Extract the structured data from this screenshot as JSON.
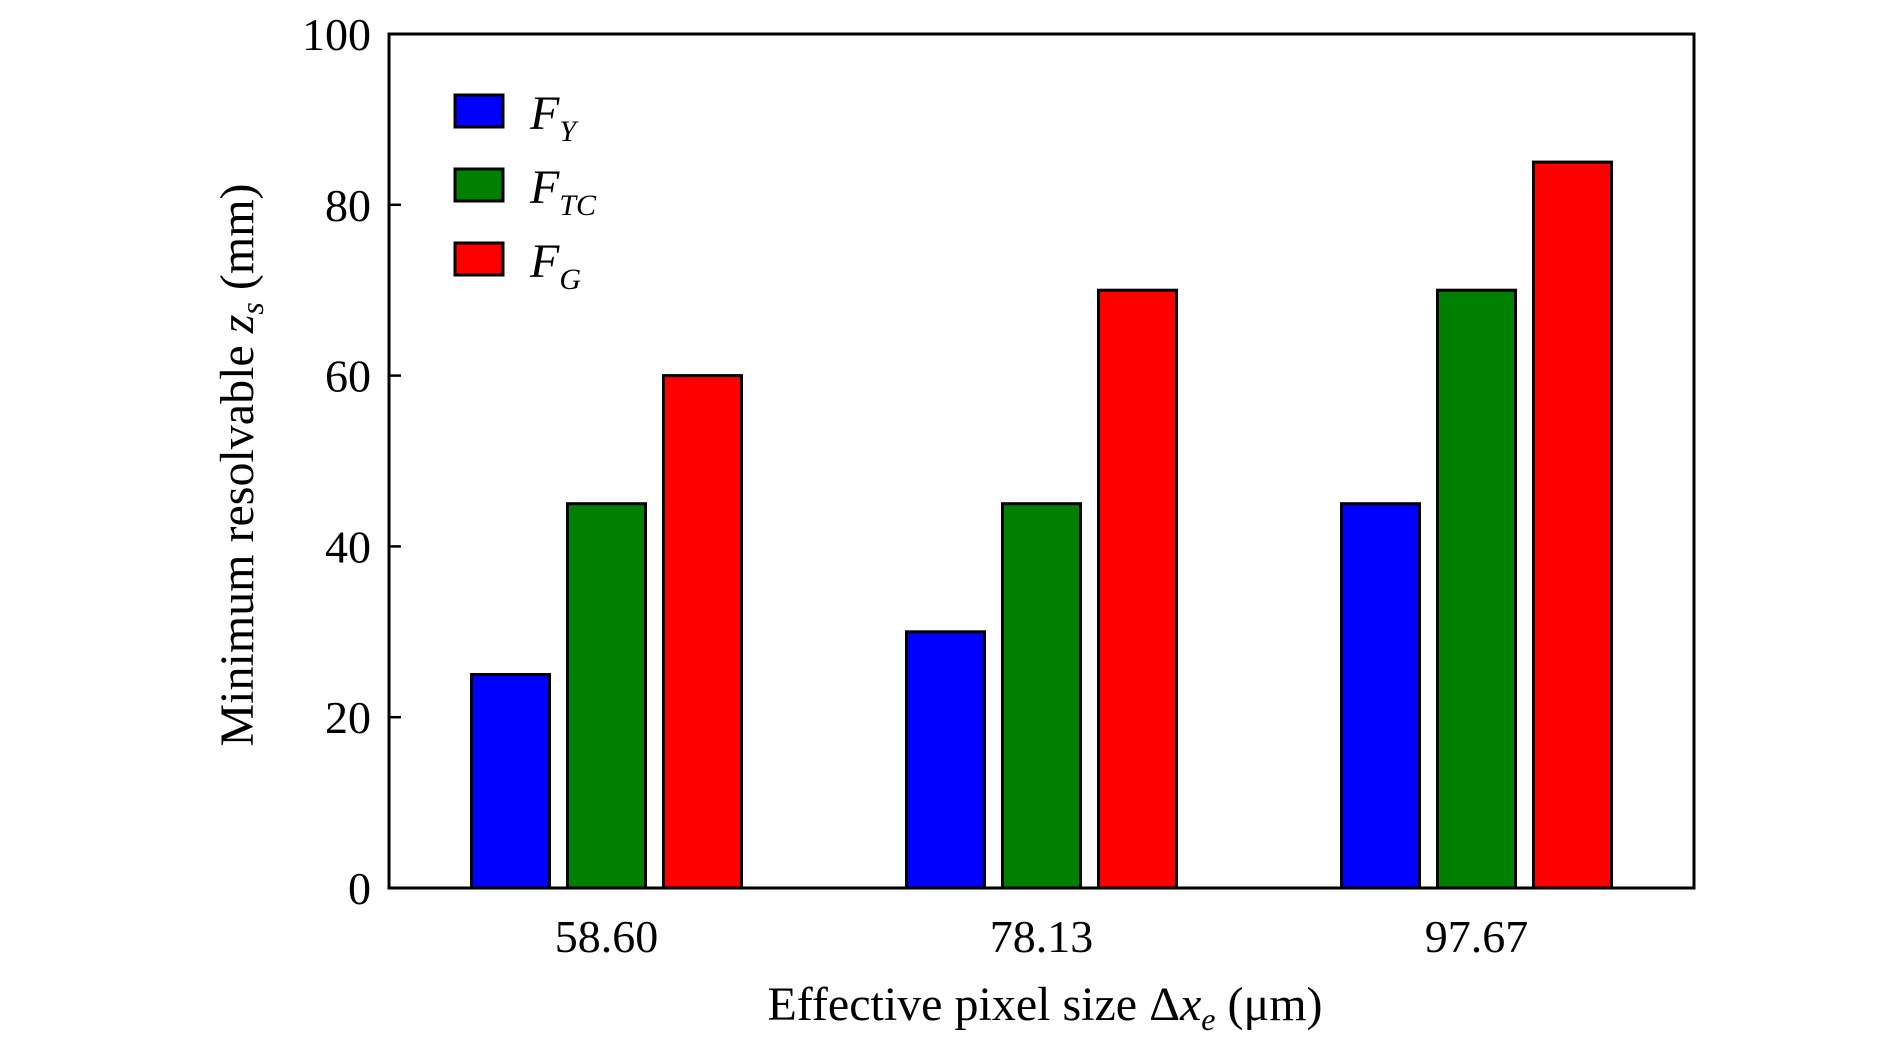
{
  "chart_data": {
    "type": "bar",
    "categories": [
      "58.60",
      "78.13",
      "97.67"
    ],
    "series": [
      {
        "name": "F_Y",
        "label_main": "F",
        "label_sub": "Y",
        "color": "#0000ff",
        "values": [
          25,
          30,
          45
        ]
      },
      {
        "name": "F_TC",
        "label_main": "F",
        "label_sub": "TC",
        "color": "#008000",
        "values": [
          45,
          45,
          70
        ]
      },
      {
        "name": "F_G",
        "label_main": "F",
        "label_sub": "G",
        "color": "#ff0000",
        "values": [
          60,
          70,
          85
        ]
      }
    ],
    "ylim": [
      0,
      100
    ],
    "yticks": [
      0,
      20,
      40,
      60,
      80,
      100
    ],
    "ytick_labels": [
      "0",
      "20",
      "40",
      "60",
      "80",
      "100"
    ],
    "xlabel": {
      "prefix": "Effective pixel size Δ",
      "var": "x",
      "sub": "e",
      "suffix": " (μm)"
    },
    "ylabel": {
      "prefix": "Minimum resolvable ",
      "var": "z",
      "sub": "s",
      "suffix": " (mm)"
    },
    "title": "",
    "grid": false,
    "legend_position": "top-left"
  }
}
